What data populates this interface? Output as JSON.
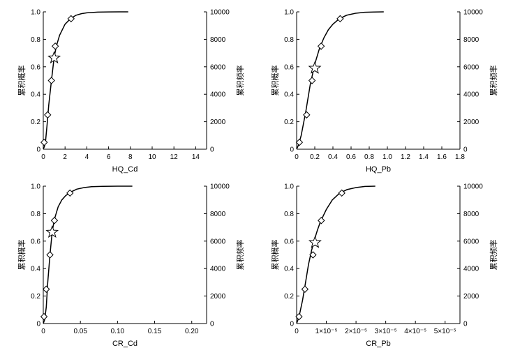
{
  "chart_data": [
    {
      "type": "line",
      "xlabel": "HQ_Cd",
      "ylabel_left": "累积概率",
      "ylabel_right": "累积频率",
      "xlim": [
        0,
        15
      ],
      "ylim": [
        0,
        1
      ],
      "ylim_right": [
        0,
        10000
      ],
      "x_ticks": [
        0,
        2,
        4,
        6,
        8,
        10,
        12,
        14
      ],
      "x_tick_labels": [
        "0",
        "2",
        "4",
        "6",
        "8",
        "10",
        "12",
        "14"
      ],
      "y_ticks": [
        0,
        0.2,
        0.4,
        0.6,
        0.8,
        1.0
      ],
      "y_tick_labels": [
        "0",
        "0.2",
        "0.4",
        "0.6",
        "0.8",
        "1.0"
      ],
      "y_right_ticks": [
        0,
        2000,
        4000,
        6000,
        8000,
        10000
      ],
      "y_right_tick_labels": [
        "0",
        "2000",
        "4000",
        "6000",
        "8000",
        "10000"
      ],
      "curve": {
        "x": [
          0,
          0.1,
          0.2,
          0.35,
          0.5,
          0.75,
          1.0,
          1.2,
          1.5,
          2.0,
          2.5,
          3.0,
          3.5,
          4.0,
          5.0,
          6.0,
          7.0,
          7.8
        ],
        "y": [
          0,
          0.02,
          0.05,
          0.18,
          0.32,
          0.5,
          0.67,
          0.75,
          0.83,
          0.91,
          0.95,
          0.975,
          0.987,
          0.993,
          0.998,
          0.9995,
          1.0,
          1.0
        ]
      },
      "diamonds": {
        "x": [
          0.08,
          0.4,
          0.75,
          1.1,
          2.55
        ],
        "y": [
          0.05,
          0.25,
          0.5,
          0.75,
          0.95
        ]
      },
      "star": {
        "x": 1.0,
        "y": 0.665
      }
    },
    {
      "type": "line",
      "xlabel": "HQ_Pb",
      "ylabel_left": "累积概率",
      "ylabel_right": "累积频率",
      "xlim": [
        0,
        1.8
      ],
      "ylim": [
        0,
        1
      ],
      "ylim_right": [
        0,
        10000
      ],
      "x_ticks": [
        0,
        0.2,
        0.4,
        0.6,
        0.8,
        1.0,
        1.2,
        1.4,
        1.6,
        1.8
      ],
      "x_tick_labels": [
        "0",
        "0.2",
        "0.4",
        "0.6",
        "0.8",
        "1.0",
        "1.2",
        "1.4",
        "1.6",
        "1.8"
      ],
      "y_ticks": [
        0,
        0.2,
        0.4,
        0.6,
        0.8,
        1.0
      ],
      "y_tick_labels": [
        "0",
        "0.2",
        "0.4",
        "0.6",
        "0.8",
        "1.0"
      ],
      "y_right_ticks": [
        0,
        2000,
        4000,
        6000,
        8000,
        10000
      ],
      "y_right_tick_labels": [
        "0",
        "2000",
        "4000",
        "6000",
        "8000",
        "10000"
      ],
      "curve": {
        "x": [
          0,
          0.02,
          0.05,
          0.1,
          0.15,
          0.2,
          0.25,
          0.3,
          0.35,
          0.4,
          0.47,
          0.55,
          0.65,
          0.75,
          0.85,
          0.96
        ],
        "y": [
          0,
          0.03,
          0.1,
          0.27,
          0.47,
          0.62,
          0.73,
          0.81,
          0.87,
          0.91,
          0.95,
          0.975,
          0.99,
          0.997,
          0.999,
          1.0
        ]
      },
      "diamonds": {
        "x": [
          0.03,
          0.11,
          0.17,
          0.27,
          0.48
        ],
        "y": [
          0.05,
          0.25,
          0.5,
          0.75,
          0.95
        ]
      },
      "star": {
        "x": 0.2,
        "y": 0.59
      }
    },
    {
      "type": "line",
      "xlabel": "CR_Cd",
      "ylabel_left": "累积概率",
      "ylabel_right": "累积频率",
      "xlim": [
        0,
        0.22
      ],
      "ylim": [
        0,
        1
      ],
      "ylim_right": [
        0,
        10000
      ],
      "x_ticks": [
        0,
        0.05,
        0.1,
        0.15,
        0.2
      ],
      "x_tick_labels": [
        "0",
        "0.05",
        "0.10",
        "0.15",
        "0.20"
      ],
      "y_ticks": [
        0,
        0.2,
        0.4,
        0.6,
        0.8,
        1.0
      ],
      "y_tick_labels": [
        "0",
        "0.2",
        "0.4",
        "0.6",
        "0.8",
        "1.0"
      ],
      "y_right_ticks": [
        0,
        2000,
        4000,
        6000,
        8000,
        10000
      ],
      "y_right_tick_labels": [
        "0",
        "2000",
        "4000",
        "6000",
        "8000",
        "10000"
      ],
      "curve": {
        "x": [
          0,
          0.002,
          0.004,
          0.006,
          0.009,
          0.012,
          0.015,
          0.02,
          0.025,
          0.03,
          0.036,
          0.045,
          0.055,
          0.065,
          0.08,
          0.1,
          0.12
        ],
        "y": [
          0,
          0.03,
          0.12,
          0.3,
          0.5,
          0.67,
          0.76,
          0.85,
          0.9,
          0.93,
          0.955,
          0.978,
          0.99,
          0.996,
          0.999,
          1.0,
          1.0
        ]
      },
      "diamonds": {
        "x": [
          0.001,
          0.004,
          0.009,
          0.015,
          0.036
        ],
        "y": [
          0.05,
          0.25,
          0.5,
          0.75,
          0.95
        ]
      },
      "star": {
        "x": 0.012,
        "y": 0.665
      }
    },
    {
      "type": "line",
      "xlabel": "CR_Pb",
      "ylabel_left": "累积概率",
      "ylabel_right": "累积频率",
      "xlim": [
        0,
        5.5e-05
      ],
      "ylim": [
        0,
        1
      ],
      "ylim_right": [
        0,
        10000
      ],
      "x_ticks": [
        0,
        1e-05,
        2e-05,
        3e-05,
        4e-05,
        5e-05
      ],
      "x_tick_labels": [
        "0",
        "1×10⁻⁵",
        "2×10⁻⁵",
        "3×10⁻⁵",
        "4×10⁻⁵",
        "5×10⁻⁵"
      ],
      "y_ticks": [
        0,
        0.2,
        0.4,
        0.6,
        0.8,
        1.0
      ],
      "y_tick_labels": [
        "0",
        "0.2",
        "0.4",
        "0.6",
        "0.8",
        "1.0"
      ],
      "y_right_ticks": [
        0,
        2000,
        4000,
        6000,
        8000,
        10000
      ],
      "y_right_tick_labels": [
        "0",
        "2000",
        "4000",
        "6000",
        "8000",
        "10000"
      ],
      "curve": {
        "x": [
          0,
          5e-07,
          1e-06,
          2e-06,
          3e-06,
          4e-06,
          5e-06,
          6e-06,
          7e-06,
          8e-06,
          1e-05,
          1.2e-05,
          1.45e-05,
          1.7e-05,
          2e-05,
          2.3e-05,
          2.65e-05
        ],
        "y": [
          0,
          0.03,
          0.07,
          0.17,
          0.3,
          0.43,
          0.53,
          0.61,
          0.68,
          0.74,
          0.83,
          0.9,
          0.95,
          0.975,
          0.99,
          0.998,
          1.0
        ]
      },
      "diamonds": {
        "x": [
          8e-07,
          2.8e-06,
          5.5e-06,
          8.3e-06,
          1.52e-05
        ],
        "y": [
          0.05,
          0.25,
          0.5,
          0.75,
          0.95
        ]
      },
      "star": {
        "x": 6.2e-06,
        "y": 0.59
      }
    }
  ]
}
